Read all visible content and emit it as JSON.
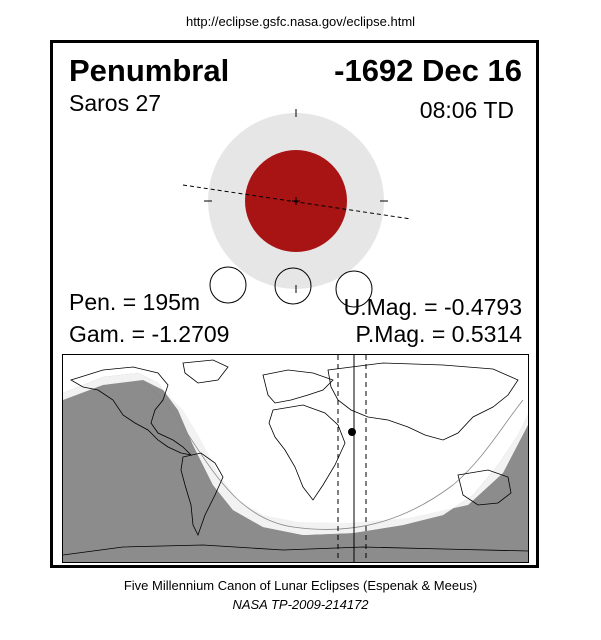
{
  "header": {
    "url": "http://eclipse.gsfc.nasa.gov/eclipse.html"
  },
  "eclipse": {
    "type": "Penumbral",
    "date": "-1692 Dec 16",
    "saros": "Saros  27",
    "time": "08:06 TD",
    "pen": "Pen. = 195m",
    "gam": "Gam. = -1.2709",
    "umag": "U.Mag. = -0.4793",
    "pmag": "P.Mag. = 0.5314"
  },
  "colors": {
    "moon": "#a81414",
    "penumbra": "#e6e6e6",
    "night": "#8c8c8c",
    "twilight": "#f2f2f2"
  },
  "footer": {
    "line1": "Five Millennium Canon of Lunar Eclipses (Espenak & Meeus)",
    "line2": "NASA TP-2009-214172"
  }
}
